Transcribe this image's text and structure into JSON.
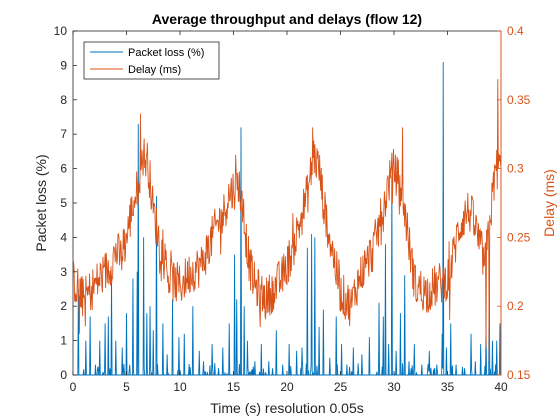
{
  "colors": {
    "packet_loss": "#0072BD",
    "delay": "#D95319",
    "axis": "#262626"
  },
  "chart_data": {
    "type": "line",
    "title": "Average throughput and delays (flow 12)",
    "xlabel": "Time (s) resolution 0.05s",
    "ylabel_left": "Packet loss (%)",
    "ylabel_right": "Delay (ms)",
    "xlim": [
      0,
      40
    ],
    "ylim_left": [
      0,
      10
    ],
    "ylim_right": [
      0.15,
      0.4
    ],
    "x_ticks": [
      0,
      5,
      10,
      15,
      20,
      25,
      30,
      35,
      40
    ],
    "y_ticks_left": [
      0,
      1,
      2,
      3,
      4,
      5,
      6,
      7,
      8,
      9,
      10
    ],
    "y_ticks_right": [
      0.15,
      0.2,
      0.25,
      0.3,
      0.35,
      0.4
    ],
    "y_tick_labels_right": [
      "0.15",
      "0.2",
      "0.25",
      "0.3",
      "0.35",
      "0.4"
    ],
    "grid": false,
    "legend": {
      "placement": "top-left",
      "entries": [
        "Packet loss (%)",
        "Delay (ms)"
      ]
    },
    "resolution_s": 0.05,
    "series": [
      {
        "name": "Packet loss (%)",
        "axis": "left",
        "style": "spikes",
        "peaks": [
          [
            0.5,
            2.5
          ],
          [
            1.2,
            1.0
          ],
          [
            1.6,
            1.7
          ],
          [
            2.1,
            0.3
          ],
          [
            2.5,
            1.0
          ],
          [
            3.0,
            1.5
          ],
          [
            3.3,
            1.7
          ],
          [
            3.6,
            2.9
          ],
          [
            4.0,
            1.0
          ],
          [
            4.6,
            0.8
          ],
          [
            5.0,
            1.8
          ],
          [
            5.3,
            0.3
          ],
          [
            5.6,
            2.8
          ],
          [
            6.0,
            3.0
          ],
          [
            6.1,
            7.3
          ],
          [
            6.6,
            4.0
          ],
          [
            6.9,
            1.8
          ],
          [
            7.2,
            2.0
          ],
          [
            7.5,
            1.3
          ],
          [
            7.8,
            5.2
          ],
          [
            8.4,
            1.5
          ],
          [
            8.8,
            0.6
          ],
          [
            9.3,
            2.2
          ],
          [
            9.9,
            1.1
          ],
          [
            10.4,
            1.2
          ],
          [
            11.2,
            2.0
          ],
          [
            11.8,
            0.7
          ],
          [
            12.2,
            0.4
          ],
          [
            13.0,
            0.9
          ],
          [
            13.6,
            0.2
          ],
          [
            14.0,
            0.8
          ],
          [
            14.6,
            1.5
          ],
          [
            15.1,
            3.5
          ],
          [
            15.3,
            2.2
          ],
          [
            15.7,
            7.2
          ],
          [
            16.0,
            2.0
          ],
          [
            16.3,
            1.0
          ],
          [
            17.0,
            0.4
          ],
          [
            17.6,
            0.9
          ],
          [
            18.3,
            0.4
          ],
          [
            19.0,
            1.3
          ],
          [
            19.6,
            0.3
          ],
          [
            20.2,
            0.9
          ],
          [
            20.9,
            0.7
          ],
          [
            21.4,
            0.8
          ],
          [
            21.9,
            3.7
          ],
          [
            22.3,
            4.1
          ],
          [
            22.6,
            4.0
          ],
          [
            23.0,
            1.4
          ],
          [
            23.4,
            1.9
          ],
          [
            24.0,
            0.5
          ],
          [
            24.6,
            1.7
          ],
          [
            25.1,
            0.9
          ],
          [
            25.6,
            0.3
          ],
          [
            26.2,
            0.8
          ],
          [
            27.0,
            0.6
          ],
          [
            27.7,
            1.1
          ],
          [
            28.6,
            2.1
          ],
          [
            29.0,
            1.7
          ],
          [
            29.2,
            3.8
          ],
          [
            29.5,
            0.9
          ],
          [
            29.8,
            5.8
          ],
          [
            30.2,
            0.7
          ],
          [
            30.6,
            1.8
          ],
          [
            31.0,
            2.9
          ],
          [
            31.4,
            0.4
          ],
          [
            31.9,
            0.9
          ],
          [
            32.6,
            0.3
          ],
          [
            33.3,
            0.7
          ],
          [
            34.0,
            0.3
          ],
          [
            34.5,
            1.2
          ],
          [
            34.6,
            9.1
          ],
          [
            34.9,
            0.8
          ],
          [
            35.3,
            1.5
          ],
          [
            35.8,
            0.3
          ],
          [
            36.6,
            0.2
          ],
          [
            37.2,
            1.2
          ],
          [
            37.6,
            0.4
          ],
          [
            38.1,
            0.9
          ],
          [
            38.6,
            1.4
          ],
          [
            38.9,
            3.2
          ],
          [
            39.2,
            1.0
          ],
          [
            39.6,
            1.0
          ],
          [
            39.9,
            1.5
          ]
        ]
      },
      {
        "name": "Delay (ms)",
        "axis": "right",
        "style": "line",
        "trend": [
          [
            0,
            0.22
          ],
          [
            1,
            0.205
          ],
          [
            2,
            0.215
          ],
          [
            3,
            0.225
          ],
          [
            3.5,
            0.23
          ],
          [
            4,
            0.24
          ],
          [
            4.5,
            0.235
          ],
          [
            5,
            0.25
          ],
          [
            5.5,
            0.27
          ],
          [
            6,
            0.285
          ],
          [
            6.5,
            0.31
          ],
          [
            7,
            0.305
          ],
          [
            7.5,
            0.27
          ],
          [
            8,
            0.25
          ],
          [
            9,
            0.22
          ],
          [
            10,
            0.215
          ],
          [
            11,
            0.225
          ],
          [
            12,
            0.23
          ],
          [
            12.5,
            0.24
          ],
          [
            13,
            0.25
          ],
          [
            13.5,
            0.26
          ],
          [
            14,
            0.265
          ],
          [
            14.5,
            0.28
          ],
          [
            15,
            0.285
          ],
          [
            15.5,
            0.29
          ],
          [
            16,
            0.26
          ],
          [
            16.5,
            0.23
          ],
          [
            17,
            0.215
          ],
          [
            18,
            0.205
          ],
          [
            19,
            0.215
          ],
          [
            19.5,
            0.22
          ],
          [
            20,
            0.23
          ],
          [
            20.5,
            0.24
          ],
          [
            21,
            0.255
          ],
          [
            21.5,
            0.27
          ],
          [
            22,
            0.285
          ],
          [
            22.5,
            0.31
          ],
          [
            23,
            0.3
          ],
          [
            23.5,
            0.27
          ],
          [
            24,
            0.25
          ],
          [
            24.5,
            0.23
          ],
          [
            25,
            0.21
          ],
          [
            26,
            0.2
          ],
          [
            26.5,
            0.215
          ],
          [
            27,
            0.225
          ],
          [
            28,
            0.24
          ],
          [
            28.5,
            0.255
          ],
          [
            29,
            0.27
          ],
          [
            29.5,
            0.29
          ],
          [
            30,
            0.3
          ],
          [
            30.5,
            0.29
          ],
          [
            31,
            0.27
          ],
          [
            31.5,
            0.24
          ],
          [
            32,
            0.215
          ],
          [
            33,
            0.21
          ],
          [
            34,
            0.215
          ],
          [
            35,
            0.22
          ],
          [
            35.5,
            0.235
          ],
          [
            36,
            0.255
          ],
          [
            36.5,
            0.265
          ],
          [
            37,
            0.27
          ],
          [
            37.5,
            0.26
          ],
          [
            38,
            0.245
          ],
          [
            38.5,
            0.23
          ],
          [
            39,
            0.265
          ],
          [
            39.5,
            0.3
          ],
          [
            40,
            0.3
          ]
        ],
        "peaks": [
          [
            6.3,
            0.34
          ],
          [
            15.2,
            0.31
          ],
          [
            22.4,
            0.33
          ],
          [
            30.8,
            0.33
          ],
          [
            39.7,
            0.365
          ]
        ],
        "lows": [
          [
            0.6,
            0.18
          ],
          [
            17.5,
            0.185
          ],
          [
            35.2,
            0.19
          ],
          [
            38.6,
            0.17
          ],
          [
            38.9,
            0.16
          ]
        ]
      }
    ]
  }
}
